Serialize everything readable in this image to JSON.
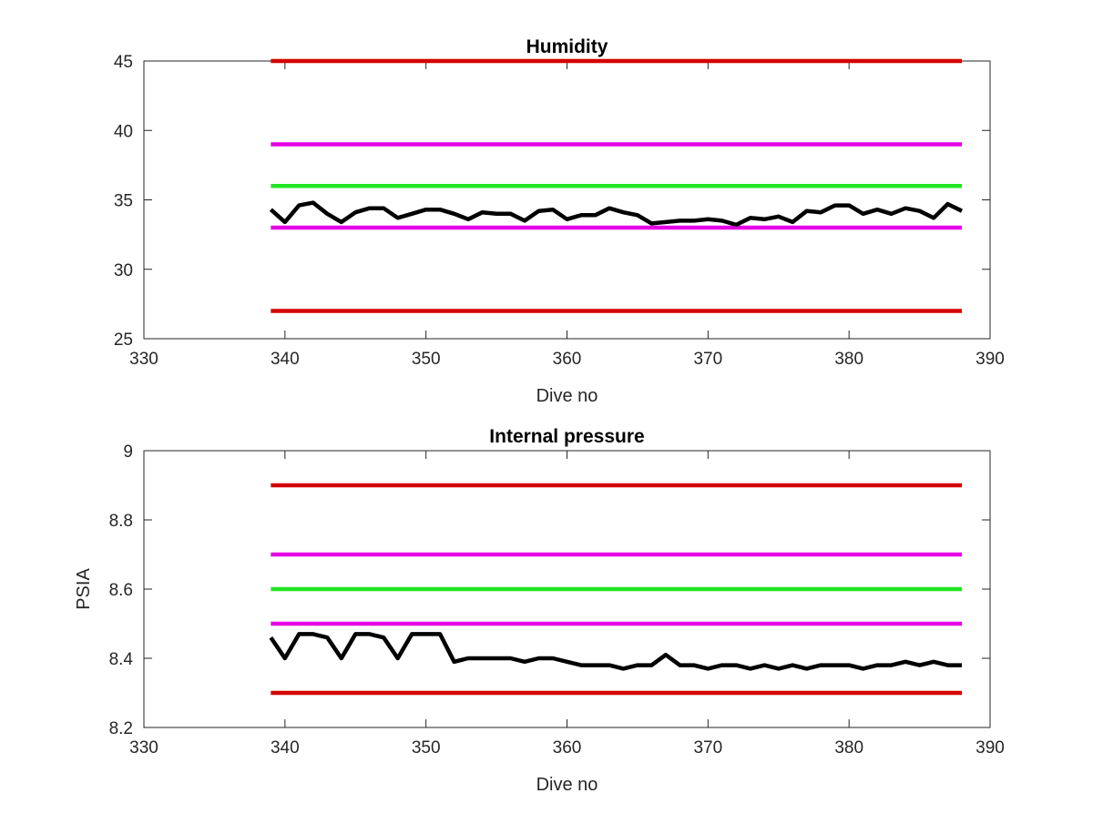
{
  "chart_data": [
    {
      "type": "line",
      "title": "Humidity",
      "xlabel": "Dive no",
      "ylabel": "",
      "xlim": [
        330,
        390
      ],
      "ylim": [
        25,
        45
      ],
      "xticks": [
        330,
        340,
        350,
        360,
        370,
        380,
        390
      ],
      "yticks": [
        25,
        30,
        35,
        40,
        45
      ],
      "grid": false,
      "x_range": [
        339,
        388
      ],
      "thresholds": [
        {
          "value": 45,
          "color": "#d40000"
        },
        {
          "value": 39,
          "color": "#e600e6"
        },
        {
          "value": 36,
          "color": "#22e622"
        },
        {
          "value": 33,
          "color": "#e600e6"
        },
        {
          "value": 27,
          "color": "#d40000"
        }
      ],
      "series": [
        {
          "color": "#000000",
          "x": [
            339,
            340,
            341,
            342,
            343,
            344,
            345,
            346,
            347,
            348,
            349,
            350,
            351,
            352,
            353,
            354,
            355,
            356,
            357,
            358,
            359,
            360,
            361,
            362,
            363,
            364,
            365,
            366,
            367,
            368,
            369,
            370,
            371,
            372,
            373,
            374,
            375,
            376,
            377,
            378,
            379,
            380,
            381,
            382,
            383,
            384,
            385,
            386,
            387,
            388
          ],
          "y": [
            34.3,
            33.4,
            34.6,
            34.8,
            34.0,
            33.4,
            34.1,
            34.4,
            34.4,
            33.7,
            34.0,
            34.3,
            34.3,
            34.0,
            33.6,
            34.1,
            34.0,
            34.0,
            33.5,
            34.2,
            34.3,
            33.6,
            33.9,
            33.9,
            34.4,
            34.1,
            33.9,
            33.3,
            33.4,
            33.5,
            33.5,
            33.6,
            33.5,
            33.2,
            33.7,
            33.6,
            33.8,
            33.4,
            34.2,
            34.1,
            34.6,
            34.6,
            34.0,
            34.3,
            34.0,
            34.4,
            34.2,
            33.7,
            34.7,
            34.2
          ]
        }
      ]
    },
    {
      "type": "line",
      "title": "Internal pressure",
      "xlabel": "Dive no",
      "ylabel": "PSIA",
      "xlim": [
        330,
        390
      ],
      "ylim": [
        8.2,
        9.0
      ],
      "xticks": [
        330,
        340,
        350,
        360,
        370,
        380,
        390
      ],
      "yticks": [
        8.2,
        8.4,
        8.6,
        8.8,
        9
      ],
      "ytick_labels": [
        "8.2",
        "8.4",
        "8.6",
        "8.8",
        "9"
      ],
      "grid": false,
      "x_range": [
        339,
        388
      ],
      "thresholds": [
        {
          "value": 8.9,
          "color": "#d40000"
        },
        {
          "value": 8.7,
          "color": "#e600e6"
        },
        {
          "value": 8.6,
          "color": "#22e622"
        },
        {
          "value": 8.5,
          "color": "#e600e6"
        },
        {
          "value": 8.3,
          "color": "#d40000"
        }
      ],
      "series": [
        {
          "color": "#000000",
          "x": [
            339,
            340,
            341,
            342,
            343,
            344,
            345,
            346,
            347,
            348,
            349,
            350,
            351,
            352,
            353,
            354,
            355,
            356,
            357,
            358,
            359,
            360,
            361,
            362,
            363,
            364,
            365,
            366,
            367,
            368,
            369,
            370,
            371,
            372,
            373,
            374,
            375,
            376,
            377,
            378,
            379,
            380,
            381,
            382,
            383,
            384,
            385,
            386,
            387,
            388
          ],
          "y": [
            8.46,
            8.4,
            8.47,
            8.47,
            8.46,
            8.4,
            8.47,
            8.47,
            8.46,
            8.4,
            8.47,
            8.47,
            8.47,
            8.39,
            8.4,
            8.4,
            8.4,
            8.4,
            8.39,
            8.4,
            8.4,
            8.39,
            8.38,
            8.38,
            8.38,
            8.37,
            8.38,
            8.38,
            8.41,
            8.38,
            8.38,
            8.37,
            8.38,
            8.38,
            8.37,
            8.38,
            8.37,
            8.38,
            8.37,
            8.38,
            8.38,
            8.38,
            8.37,
            8.38,
            8.38,
            8.39,
            8.38,
            8.39,
            8.38,
            8.38
          ]
        }
      ]
    }
  ]
}
